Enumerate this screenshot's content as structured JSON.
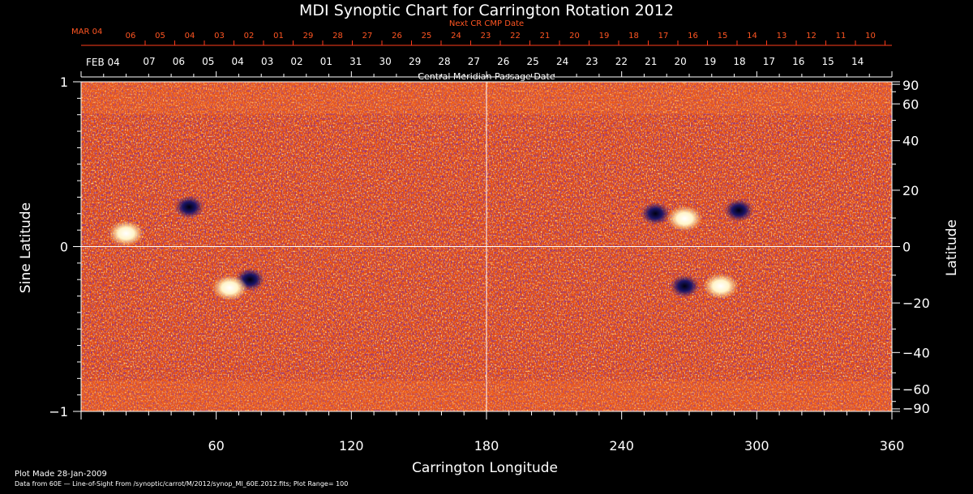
{
  "chart_data": {
    "type": "heatmap",
    "title": "MDI Synoptic Chart for Carrington Rotation 2012",
    "xlabel": "Carrington Longitude",
    "ylabel_left": "Sine Latitude",
    "ylabel_right": "Latitude",
    "xlim": [
      0,
      360
    ],
    "ylim_sine": [
      -1,
      1
    ],
    "x_ticks": [
      "60",
      "120",
      "180",
      "240",
      "300",
      "360"
    ],
    "y_left_ticks": [
      "1",
      "0",
      "−1"
    ],
    "y_right_ticks": [
      {
        "lat": 90,
        "label": "90"
      },
      {
        "lat": 60,
        "label": "60"
      },
      {
        "lat": 40,
        "label": "40"
      },
      {
        "lat": 20,
        "label": "20"
      },
      {
        "lat": 0,
        "label": "0"
      },
      {
        "lat": -20,
        "label": "−20"
      },
      {
        "lat": -40,
        "label": "−40"
      },
      {
        "lat": -60,
        "label": "−60"
      },
      {
        "lat": -90,
        "label": "−90"
      }
    ],
    "next_cr_axis": {
      "label": "Next CR CMP Date",
      "start_label": "MAR 04",
      "dates": [
        "06",
        "05",
        "04",
        "03",
        "02",
        "01",
        "29",
        "28",
        "27",
        "26",
        "25",
        "24",
        "23",
        "22",
        "21",
        "20",
        "19",
        "18",
        "17",
        "16",
        "15",
        "14",
        "13",
        "12",
        "11",
        "10"
      ]
    },
    "cmp_axis": {
      "label": "Central Meridian Passage Date",
      "start_label": "FEB 04",
      "dates": [
        "07",
        "06",
        "05",
        "04",
        "03",
        "02",
        "01",
        "31",
        "30",
        "29",
        "28",
        "27",
        "26",
        "25",
        "24",
        "23",
        "22",
        "21",
        "20",
        "19",
        "18",
        "17",
        "16",
        "15",
        "14"
      ]
    },
    "colormap": {
      "background": "#e84e0f",
      "positive": "#ffffff",
      "negative": "#1a1466"
    },
    "active_regions": [
      {
        "lon": 48,
        "sinlat": 0.24,
        "polarity": "negative"
      },
      {
        "lon": 20,
        "sinlat": 0.08,
        "polarity": "positive"
      },
      {
        "lon": 75,
        "sinlat": -0.2,
        "polarity": "negative"
      },
      {
        "lon": 66,
        "sinlat": -0.25,
        "polarity": "positive"
      },
      {
        "lon": 255,
        "sinlat": 0.2,
        "polarity": "negative"
      },
      {
        "lon": 268,
        "sinlat": 0.17,
        "polarity": "positive"
      },
      {
        "lon": 284,
        "sinlat": -0.24,
        "polarity": "positive"
      },
      {
        "lon": 268,
        "sinlat": -0.24,
        "polarity": "negative"
      },
      {
        "lon": 292,
        "sinlat": 0.22,
        "polarity": "negative"
      }
    ],
    "grid": true
  },
  "footer": {
    "plot_made": "Plot Made 28-Jan-2009",
    "data_source": "Data from 60E — Line-of-Sight From /synoptic/carrot/M/2012/synop_Ml_60E.2012.fits; Plot Range= 100"
  }
}
